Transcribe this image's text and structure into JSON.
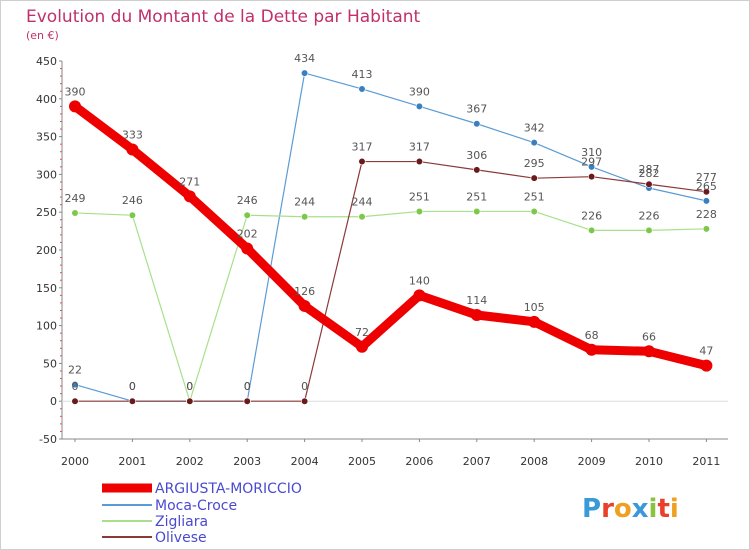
{
  "chart_data": {
    "type": "line",
    "title": "Evolution du Montant de la Dette par Habitant",
    "subtitle": "(en €)",
    "x": [
      "2000",
      "2001",
      "2002",
      "2003",
      "2004",
      "2005",
      "2006",
      "2007",
      "2008",
      "2009",
      "2010",
      "2011"
    ],
    "ylim": [
      -50,
      450
    ],
    "yticks": [
      -50,
      0,
      50,
      100,
      150,
      200,
      250,
      300,
      350,
      400,
      450
    ],
    "grid": false,
    "legend_position": "bottom",
    "series": [
      {
        "name": "ARGIUSTA-MORICCIO",
        "color": "#ee0000",
        "values": [
          390,
          333,
          271,
          202,
          126,
          72,
          140,
          114,
          105,
          68,
          66,
          47
        ],
        "labels": [
          "390",
          "333",
          "271",
          "202",
          "126",
          "72",
          "140",
          "114",
          "105",
          "68",
          "66",
          "47"
        ]
      },
      {
        "name": "Moca-Croce",
        "color": "#5b9bd5",
        "marker": "#3a7fc0",
        "values": [
          22,
          0,
          0,
          0,
          434,
          413,
          390,
          367,
          342,
          310,
          282,
          265
        ],
        "labels": [
          "22",
          "0",
          "",
          "0",
          "434",
          "413",
          "390",
          "367",
          "342",
          "310",
          "282",
          "265"
        ]
      },
      {
        "name": "Zigliara",
        "color": "#a8e08a",
        "marker": "#7cc84a",
        "values": [
          249,
          246,
          0,
          246,
          244,
          244,
          251,
          251,
          251,
          226,
          226,
          228
        ],
        "labels": [
          "249",
          "246",
          "0",
          "246",
          "244",
          "244",
          "251",
          "251",
          "251",
          "226",
          "226",
          "228"
        ]
      },
      {
        "name": "Olivese",
        "color": "#8b3a3a",
        "marker": "#6a1a1a",
        "values": [
          0,
          0,
          0,
          0,
          0,
          317,
          317,
          306,
          295,
          297,
          287,
          277
        ],
        "labels": [
          "0",
          "0",
          "0",
          "0",
          "0",
          "317",
          "317",
          "306",
          "295",
          "297",
          "287",
          "277"
        ]
      }
    ]
  },
  "logo": {
    "text": "Proxiti",
    "letter_colors": [
      "#3a9ad9",
      "#e8402a",
      "#f0a020",
      "#3a9ad9",
      "#8ac43f",
      "#e8402a",
      "#f0a020"
    ]
  }
}
